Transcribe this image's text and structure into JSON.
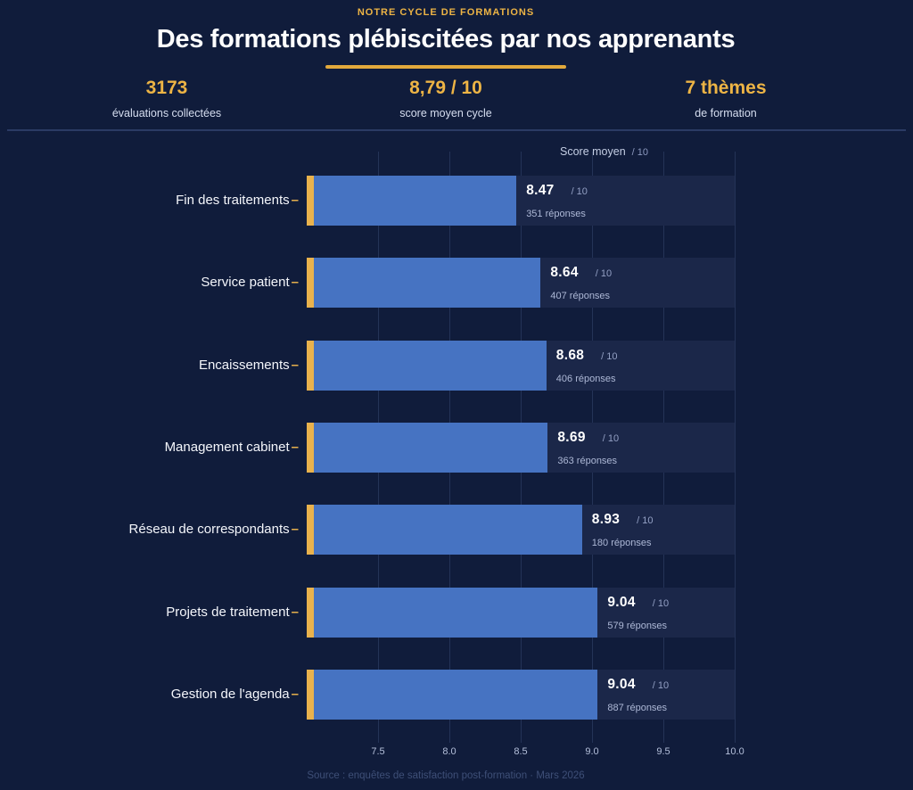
{
  "page": {
    "eyebrow": "NOTRE CYCLE DE FORMATIONS",
    "title": "Des formations plébiscitées par nos apprenants",
    "footer": "Source : enquêtes de satisfaction post-formation  ·  Mars 2026"
  },
  "stats": [
    {
      "value": "3173",
      "label": "évaluations collectées"
    },
    {
      "value": "8,79 / 10",
      "label": "score moyen cycle"
    },
    {
      "value": "7 thèmes",
      "label": "de formation"
    }
  ],
  "chart_header": {
    "label": "Score moyen",
    "suffix": "/ 10"
  },
  "chart_data": {
    "type": "bar",
    "orientation": "horizontal",
    "title": "Des formations plébiscitées par nos apprenants",
    "categories": [
      "Fin des traitements",
      "Service patient",
      "Encaissements",
      "Management cabinet",
      "Réseau de correspondants",
      "Projets de traitement",
      "Gestion de l'agenda"
    ],
    "series": [
      {
        "name": "Score moyen",
        "values": [
          8.47,
          8.64,
          8.68,
          8.69,
          8.93,
          9.04,
          9.04
        ]
      }
    ],
    "value_labels": [
      "8.47",
      "8.64",
      "8.68",
      "8.69",
      "8.93",
      "9.04",
      "9.04"
    ],
    "value_suffix": "/ 10",
    "responses": [
      "351 réponses",
      "407 réponses",
      "406 réponses",
      "363 réponses",
      "180 réponses",
      "579 réponses",
      "887 réponses"
    ],
    "xlim": [
      7.0,
      10.0
    ],
    "xticks": [
      "7.5",
      "8.0",
      "8.5",
      "9.0",
      "9.5",
      "10.0"
    ],
    "xtick_values": [
      7.5,
      8.0,
      8.5,
      9.0,
      9.5,
      10.0
    ],
    "grid": true,
    "legend": false,
    "colors": {
      "bar": "#4673C2",
      "bar_accent": "#E9B24D",
      "background": "#101C3B",
      "row_band": "#1B2749",
      "gridline": "#2A3A62",
      "accent_gold": "#EDB445"
    }
  }
}
